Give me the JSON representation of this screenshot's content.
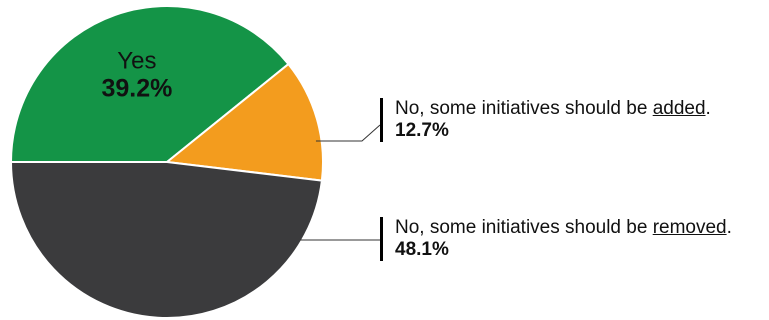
{
  "chart_data": {
    "type": "pie",
    "slices": [
      {
        "label": "Yes",
        "value": 39.2,
        "value_text": "39.2%",
        "color": "#149447",
        "label_placement": "inside"
      },
      {
        "label": "No, some initiatives should be added.",
        "label_parts": [
          "No, some initiatives should be ",
          "added",
          "."
        ],
        "value": 12.7,
        "value_text": "12.7%",
        "color": "#f39c1e",
        "label_placement": "outside-callout"
      },
      {
        "label": "No, some initiatives should be removed.",
        "label_parts": [
          "No, some initiatives should be ",
          "removed",
          "."
        ],
        "value": 48.1,
        "value_text": "48.1%",
        "color": "#3b3b3d",
        "label_placement": "outside-callout"
      }
    ],
    "title": "",
    "start": "left-horizontal",
    "direction": "clockwise"
  }
}
